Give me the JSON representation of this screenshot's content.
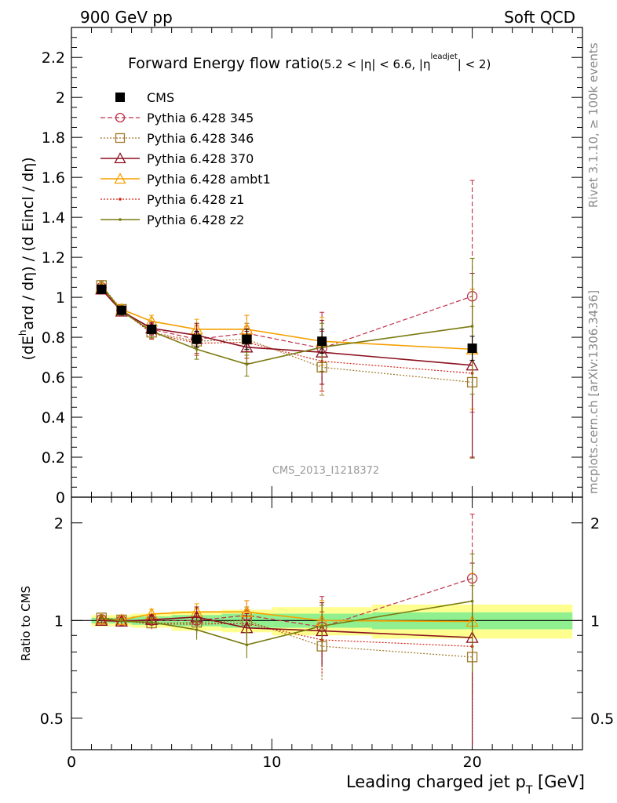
{
  "header": {
    "left": "900 GeV pp",
    "right": "Soft QCD"
  },
  "side_text": {
    "rivet": "Rivet 3.1.10, ≥ 100k events",
    "mcplots": "mcplots.cern.ch [arXiv:1306.3436]"
  },
  "watermark": "CMS_2013_I1218372",
  "labels": {
    "title_main": "Forward Energy flow ratio",
    "title_sub_a": "(5.2 < |η| < 6.6, |η",
    "title_sub_sup": "leadjet",
    "title_sub_b": "| < 2)",
    "y_main": "(dE",
    "y_main_sup": "h",
    "y_main_rest": "ard / dη) / (d Eincl / dη)",
    "y_ratio": "Ratio to CMS",
    "x_axis": "Leading charged jet p",
    "x_axis_sub": "T",
    "x_axis_unit": " [GeV]"
  },
  "colors": {
    "CMS": "#000000",
    "p345": "#c0304a",
    "p346": "#a07828",
    "p370": "#8b1020",
    "ambt1": "#f5a000",
    "z1": "#d02010",
    "z2": "#7a7a10",
    "band_inner": "#90f090",
    "band_outer": "#ffff90"
  },
  "chart_data": {
    "type": "scatter",
    "x": [
      1.5,
      2.5,
      4.0,
      6.25,
      8.75,
      12.5,
      20.0
    ],
    "x_ticks": [
      "0",
      "10",
      "20"
    ],
    "y_ticks_main": [
      "0",
      "0.2",
      "0.4",
      "0.6",
      "0.8",
      "1",
      "1.2",
      "1.4",
      "1.6",
      "1.8",
      "2",
      "2.2"
    ],
    "y_ticks_ratio": [
      "0.5",
      "1",
      "2"
    ],
    "xlim": [
      0,
      25.5
    ],
    "ylim_main": [
      0,
      2.35
    ],
    "ylim_ratio": [
      0.4,
      2.4
    ],
    "ratio_log_scale": true,
    "legend_position": "top-left",
    "series": [
      {
        "key": "CMS",
        "name": "CMS",
        "values": [
          1.04,
          0.935,
          0.84,
          0.79,
          0.79,
          0.78,
          0.745
        ],
        "errors": [
          0.01,
          0.01,
          0.02,
          0.04,
          0.05,
          0.06,
          0.06
        ]
      },
      {
        "key": "p345",
        "name": "Pythia 6.428 345",
        "values": [
          1.05,
          0.935,
          0.84,
          0.79,
          0.82,
          0.745,
          1.005
        ],
        "errors": [
          0.02,
          0.02,
          0.03,
          0.07,
          0.09,
          0.18,
          0.58
        ]
      },
      {
        "key": "p346",
        "name": "Pythia 6.428 346",
        "values": [
          1.06,
          0.94,
          0.825,
          0.78,
          0.79,
          0.65,
          0.575
        ],
        "errors": [
          0.02,
          0.02,
          0.03,
          0.06,
          0.08,
          0.14,
          0.38
        ]
      },
      {
        "key": "p370",
        "name": "Pythia 6.428 370",
        "values": [
          1.04,
          0.93,
          0.845,
          0.81,
          0.75,
          0.725,
          0.66
        ],
        "errors": [
          0.02,
          0.02,
          0.03,
          0.06,
          0.08,
          0.16,
          0.46
        ]
      },
      {
        "key": "ambt1",
        "name": "Pythia 6.428 ambt1",
        "values": [
          1.05,
          0.94,
          0.88,
          0.84,
          0.84,
          0.78,
          0.74
        ],
        "errors": [
          0.02,
          0.02,
          0.03,
          0.05,
          0.07,
          0.12,
          0.3
        ]
      },
      {
        "key": "z1",
        "name": "Pythia 6.428 z1",
        "values": [
          1.05,
          0.935,
          0.82,
          0.77,
          0.775,
          0.68,
          0.62
        ],
        "errors": [
          0.02,
          0.02,
          0.03,
          0.06,
          0.08,
          0.15,
          0.42
        ]
      },
      {
        "key": "z2",
        "name": "Pythia 6.428 z2",
        "values": [
          1.06,
          0.93,
          0.83,
          0.74,
          0.665,
          0.75,
          0.855
        ],
        "errors": [
          0.02,
          0.02,
          0.03,
          0.05,
          0.06,
          0.12,
          0.34
        ]
      }
    ],
    "ratio_band": {
      "x_edges": [
        1.0,
        2.0,
        3.0,
        5.0,
        7.5,
        10.0,
        15.0,
        25.0
      ],
      "inner": [
        0.02,
        0.02,
        0.03,
        0.04,
        0.05,
        0.05,
        0.06
      ],
      "outer": [
        0.04,
        0.04,
        0.05,
        0.07,
        0.08,
        0.1,
        0.12
      ]
    }
  }
}
